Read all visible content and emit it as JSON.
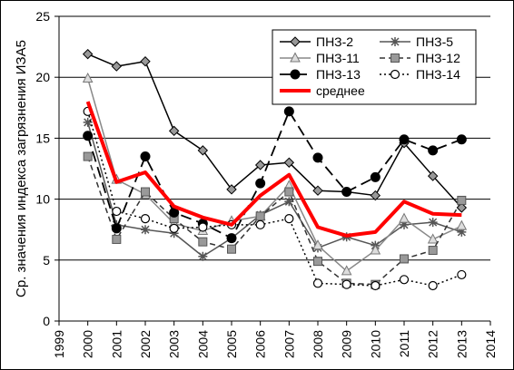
{
  "chart_data": {
    "type": "line",
    "title": "",
    "xlabel": "",
    "ylabel": "Ср. значения индекса  загрязнения  ИЗА5",
    "xlim": [
      1999,
      2014
    ],
    "ylim": [
      0,
      25
    ],
    "xticks": [
      "1999",
      "2000",
      "2001",
      "2002",
      "2003",
      "2004",
      "2005",
      "2006",
      "2007",
      "2008",
      "2009",
      "2010",
      "2011",
      "2012",
      "2013",
      "2014"
    ],
    "yticks": [
      "0",
      "5",
      "10",
      "15",
      "20",
      "25"
    ],
    "grid": "horizontal",
    "legend_position": "top-right",
    "x": [
      2000,
      2001,
      2002,
      2003,
      2004,
      2005,
      2006,
      2007,
      2008,
      2009,
      2010,
      2011,
      2012,
      2013
    ],
    "series": [
      {
        "name": "ПНЗ-2",
        "style": "solid-diamond",
        "values": [
          21.9,
          20.9,
          21.3,
          15.6,
          14.0,
          10.8,
          12.8,
          13.0,
          10.7,
          10.6,
          10.3,
          14.6,
          11.9,
          9.3
        ]
      },
      {
        "name": "ПНЗ-5",
        "style": "solid-asterisk",
        "values": [
          16.3,
          7.9,
          7.5,
          7.2,
          5.3,
          6.8,
          8.7,
          9.8,
          6.0,
          6.9,
          6.2,
          7.9,
          8.1,
          7.3
        ]
      },
      {
        "name": "ПНЗ-11",
        "style": "solid-triangle",
        "values": [
          19.9,
          11.6,
          10.4,
          8.0,
          7.4,
          8.2,
          8.6,
          11.1,
          6.2,
          4.1,
          5.8,
          8.4,
          6.7,
          7.8
        ]
      },
      {
        "name": "ПНЗ-12",
        "style": "dashed-square",
        "values": [
          13.5,
          6.7,
          10.6,
          8.4,
          6.5,
          5.9,
          8.6,
          10.6,
          4.9,
          3.1,
          3.0,
          5.1,
          5.8,
          9.9
        ]
      },
      {
        "name": "ПНЗ-13",
        "style": "longdash-circle",
        "values": [
          15.2,
          7.6,
          13.5,
          8.9,
          8.0,
          6.8,
          11.3,
          17.2,
          13.4,
          10.6,
          11.8,
          14.9,
          14.0,
          14.9
        ]
      },
      {
        "name": "ПНЗ-14",
        "style": "dotted-opencircle",
        "values": [
          17.2,
          9.0,
          8.4,
          7.6,
          7.7,
          7.9,
          7.9,
          8.4,
          3.1,
          3.0,
          2.9,
          3.4,
          2.9,
          3.8
        ]
      },
      {
        "name": "среднее",
        "style": "thick-red",
        "values": [
          18.0,
          11.4,
          12.2,
          9.4,
          8.5,
          7.9,
          10.3,
          12.0,
          7.7,
          7.0,
          7.3,
          9.8,
          8.8,
          8.7
        ]
      }
    ],
    "colors": {
      "main": "#000000",
      "mean": "#ff0000",
      "grid": "#000000",
      "marker_fill": "#999999"
    }
  }
}
